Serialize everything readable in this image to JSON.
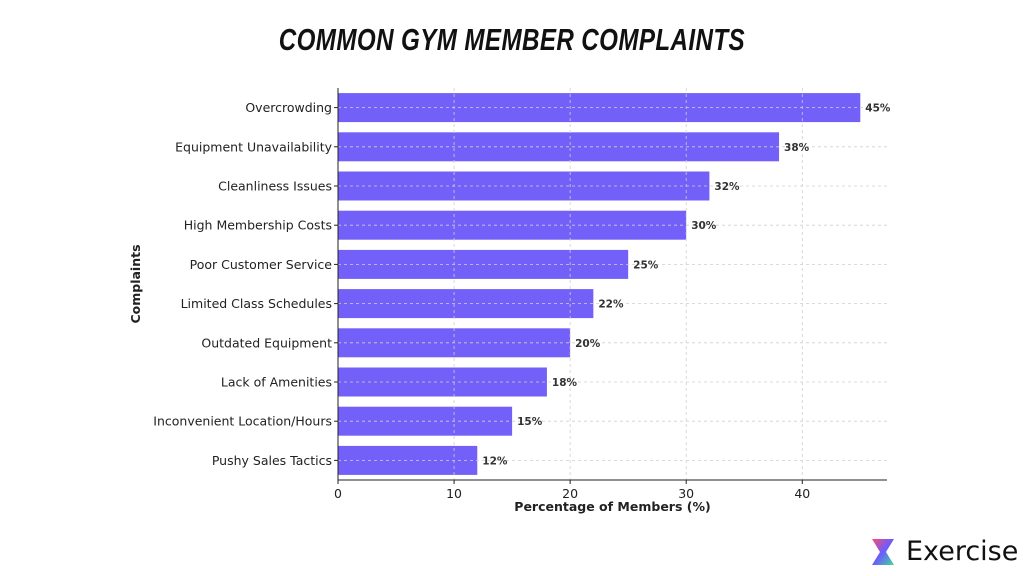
{
  "chart_data": {
    "type": "bar",
    "orientation": "horizontal",
    "title": "COMMON GYM MEMBER COMPLAINTS",
    "xlabel": "Percentage of Members (%)",
    "ylabel": "Complaints",
    "categories": [
      "Overcrowding",
      "Equipment Unavailability",
      "Cleanliness Issues",
      "High Membership Costs",
      "Poor Customer Service",
      "Limited Class Schedules",
      "Outdated Equipment",
      "Lack of Amenities",
      "Inconvenient Location/Hours",
      "Pushy Sales Tactics"
    ],
    "values": [
      45,
      38,
      32,
      30,
      25,
      22,
      20,
      18,
      15,
      12
    ],
    "data_labels": [
      "45%",
      "38%",
      "32%",
      "30%",
      "25%",
      "22%",
      "20%",
      "18%",
      "15%",
      "12%"
    ],
    "xlim": [
      0,
      47.3
    ],
    "xticks": [
      0,
      10,
      20,
      30,
      40
    ],
    "grid": true,
    "bar_color": "#7360f8"
  },
  "logo": {
    "text": "Exercise"
  }
}
